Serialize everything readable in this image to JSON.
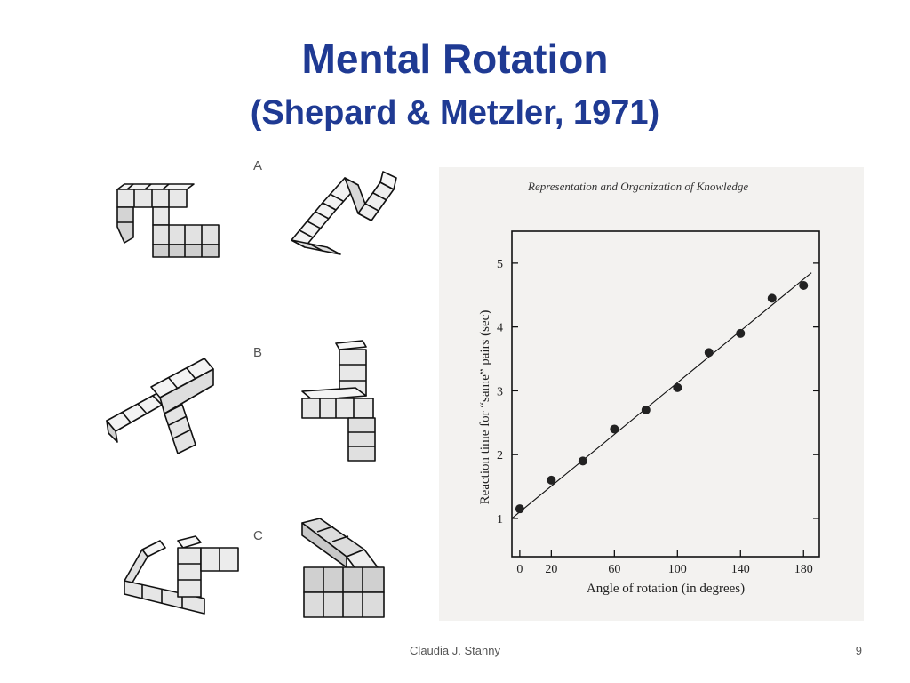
{
  "slide": {
    "title": "Mental Rotation",
    "subtitle": "(Shepard & Metzler, 1971)",
    "footer": "Claudia J. Stanny",
    "page_number": "9"
  },
  "stimuli": {
    "labels": [
      "A",
      "B",
      "C"
    ]
  },
  "chart_data": {
    "type": "scatter",
    "header": "Representation and Organization of Knowledge",
    "xlabel": "Angle of rotation (in degrees)",
    "ylabel": "Reaction time for “same” pairs (sec)",
    "x_ticks": [
      "0",
      "20",
      "60",
      "100",
      "140",
      "180"
    ],
    "x_tick_values": [
      0,
      20,
      60,
      100,
      140,
      180
    ],
    "y_ticks": [
      "1",
      "2",
      "3",
      "4",
      "5"
    ],
    "y_tick_values": [
      1,
      2,
      3,
      4,
      5
    ],
    "xlim": [
      -5,
      190
    ],
    "ylim": [
      0.4,
      5.5
    ],
    "grid": false,
    "series": [
      {
        "x": [
          0,
          20,
          40,
          60,
          80,
          100,
          120,
          140,
          160,
          180
        ],
        "y": [
          1.15,
          1.6,
          1.9,
          2.4,
          2.7,
          3.05,
          3.6,
          3.9,
          4.45,
          4.65
        ]
      }
    ],
    "fit_line": {
      "x": [
        -5,
        185
      ],
      "y": [
        1.0,
        4.85
      ]
    }
  }
}
